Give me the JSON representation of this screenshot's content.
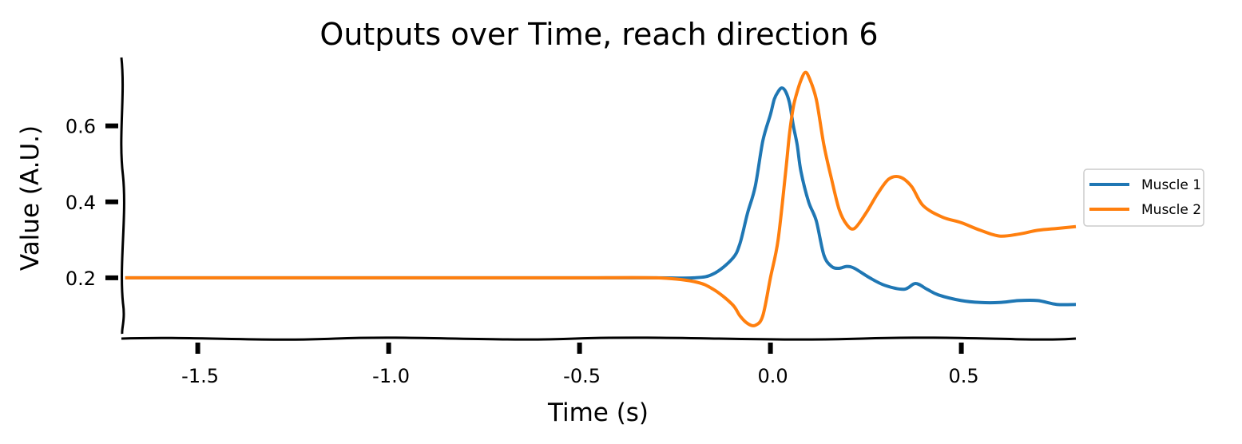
{
  "chart_data": {
    "type": "line",
    "title": "Outputs over Time, reach direction 6",
    "xlabel": "Time (s)",
    "ylabel": "Value (A.U.)",
    "xlim": [
      -1.7,
      0.8
    ],
    "ylim": [
      0.04,
      0.78
    ],
    "xticks": [
      -1.5,
      -1.0,
      -0.5,
      0.0,
      0.5
    ],
    "xtick_labels": [
      "-1.5",
      "-1.0",
      "-0.5",
      "0.0",
      "0.5"
    ],
    "yticks": [
      0.2,
      0.4,
      0.6
    ],
    "ytick_labels": [
      "0.2",
      "0.4",
      "0.6"
    ],
    "grid": false,
    "legend_position": "right",
    "series": [
      {
        "name": "Muscle 1",
        "color": "#1f77b4",
        "x": [
          -1.69,
          -1.5,
          -1.3,
          -1.1,
          -0.9,
          -0.7,
          -0.5,
          -0.3,
          -0.2,
          -0.15,
          -0.1,
          -0.08,
          -0.06,
          -0.04,
          -0.02,
          0.0,
          0.01,
          0.02,
          0.03,
          0.04,
          0.05,
          0.06,
          0.07,
          0.08,
          0.1,
          0.12,
          0.14,
          0.16,
          0.18,
          0.2,
          0.22,
          0.26,
          0.3,
          0.35,
          0.38,
          0.41,
          0.44,
          0.5,
          0.55,
          0.6,
          0.65,
          0.7,
          0.75,
          0.8
        ],
        "y": [
          0.2,
          0.2,
          0.2,
          0.2,
          0.2,
          0.2,
          0.2,
          0.2,
          0.2,
          0.21,
          0.25,
          0.29,
          0.37,
          0.44,
          0.56,
          0.63,
          0.67,
          0.69,
          0.7,
          0.69,
          0.66,
          0.6,
          0.55,
          0.48,
          0.4,
          0.35,
          0.26,
          0.23,
          0.225,
          0.23,
          0.225,
          0.2,
          0.18,
          0.17,
          0.185,
          0.17,
          0.155,
          0.14,
          0.135,
          0.135,
          0.14,
          0.14,
          0.13,
          0.13
        ]
      },
      {
        "name": "Muscle 2",
        "color": "#ff7f0e",
        "x": [
          -1.69,
          -1.5,
          -1.3,
          -1.1,
          -0.9,
          -0.7,
          -0.5,
          -0.3,
          -0.2,
          -0.15,
          -0.1,
          -0.08,
          -0.06,
          -0.04,
          -0.02,
          0.0,
          0.02,
          0.04,
          0.05,
          0.06,
          0.07,
          0.08,
          0.09,
          0.1,
          0.12,
          0.14,
          0.16,
          0.18,
          0.2,
          0.22,
          0.25,
          0.28,
          0.31,
          0.34,
          0.37,
          0.4,
          0.45,
          0.5,
          0.55,
          0.6,
          0.65,
          0.7,
          0.75,
          0.8
        ],
        "y": [
          0.2,
          0.2,
          0.2,
          0.2,
          0.2,
          0.2,
          0.2,
          0.2,
          0.19,
          0.17,
          0.13,
          0.1,
          0.08,
          0.075,
          0.1,
          0.2,
          0.3,
          0.48,
          0.58,
          0.65,
          0.69,
          0.72,
          0.74,
          0.73,
          0.67,
          0.55,
          0.46,
          0.38,
          0.34,
          0.33,
          0.37,
          0.42,
          0.46,
          0.465,
          0.44,
          0.39,
          0.36,
          0.345,
          0.325,
          0.31,
          0.315,
          0.325,
          0.33,
          0.335
        ]
      }
    ]
  }
}
